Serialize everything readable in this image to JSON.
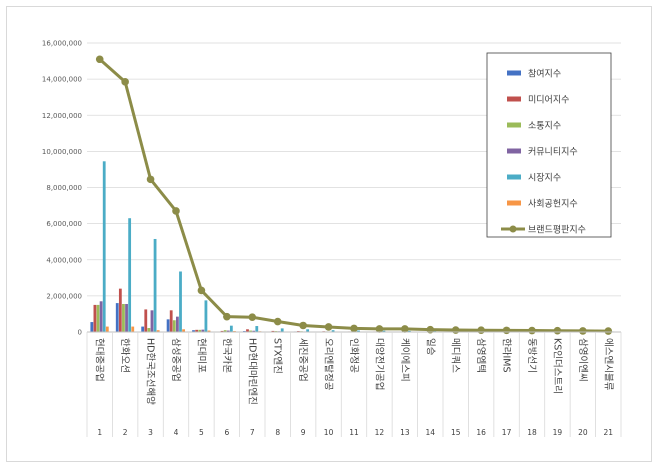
{
  "chart_data": {
    "type": "bar",
    "categories": [
      "현대중공업",
      "한화오션",
      "HD한국조선해양",
      "삼성중공업",
      "현대미포",
      "한국카본",
      "HD현대마린엔진",
      "STX엔진",
      "세진중공업",
      "오리엔탈정공",
      "인화정공",
      "대양전기공업",
      "케이에스피",
      "일승",
      "메디쿼스",
      "삼영엠텍",
      "한라IMS",
      "동방선기",
      "KS인더스트리",
      "삼영이엔씨",
      "에스엔시블류"
    ],
    "ranks": [
      "1",
      "2",
      "3",
      "4",
      "5",
      "6",
      "7",
      "8",
      "9",
      "10",
      "11",
      "12",
      "13",
      "14",
      "15",
      "16",
      "17",
      "18",
      "19",
      "20",
      "21"
    ],
    "ylim": [
      0,
      16000000
    ],
    "yticks": [
      0,
      2000000,
      4000000,
      6000000,
      8000000,
      10000000,
      12000000,
      14000000,
      16000000
    ],
    "ytick_labels": [
      "0",
      "2,000,000",
      "4,000,000",
      "6,000,000",
      "8,000,000",
      "10,000,000",
      "12,000,000",
      "14,000,000",
      "16,000,000"
    ],
    "grid": true,
    "legend_position": "top-right",
    "series": [
      {
        "name": "참여지수",
        "kind": "bar",
        "color": "#4472c4",
        "values": [
          550000,
          1600000,
          300000,
          700000,
          100000,
          20000,
          50000,
          20000,
          30000,
          20000,
          10000,
          10000,
          10000,
          10000,
          5000,
          5000,
          5000,
          5000,
          5000,
          5000,
          5000
        ]
      },
      {
        "name": "미디어지수",
        "kind": "bar",
        "color": "#c0504d",
        "values": [
          1500000,
          2400000,
          1250000,
          1200000,
          120000,
          60000,
          150000,
          60000,
          50000,
          40000,
          30000,
          30000,
          20000,
          20000,
          15000,
          15000,
          15000,
          10000,
          10000,
          10000,
          10000
        ]
      },
      {
        "name": "소통지수",
        "kind": "bar",
        "color": "#9bbb59",
        "values": [
          1500000,
          1550000,
          220000,
          650000,
          120000,
          100000,
          80000,
          50000,
          40000,
          30000,
          20000,
          20000,
          20000,
          15000,
          10000,
          10000,
          10000,
          10000,
          10000,
          10000,
          10000
        ]
      },
      {
        "name": "커뮤니티지수",
        "kind": "bar",
        "color": "#8064a2",
        "values": [
          1700000,
          1550000,
          1200000,
          850000,
          130000,
          80000,
          70000,
          40000,
          30000,
          25000,
          20000,
          20000,
          15000,
          15000,
          10000,
          10000,
          10000,
          10000,
          10000,
          10000,
          10000
        ]
      },
      {
        "name": "시장지수",
        "kind": "bar",
        "color": "#4bacc6",
        "values": [
          9450000,
          6300000,
          5150000,
          3350000,
          1750000,
          350000,
          330000,
          200000,
          150000,
          100000,
          80000,
          70000,
          60000,
          50000,
          40000,
          40000,
          35000,
          35000,
          30000,
          30000,
          30000
        ]
      },
      {
        "name": "사회공헌지수",
        "kind": "bar",
        "color": "#f79646",
        "values": [
          300000,
          300000,
          100000,
          150000,
          80000,
          50000,
          40000,
          20000,
          20000,
          20000,
          10000,
          10000,
          10000,
          10000,
          5000,
          5000,
          5000,
          5000,
          5000,
          5000,
          5000
        ]
      },
      {
        "name": "브랜드평판지수",
        "kind": "line",
        "color": "#8c8c48",
        "values": [
          15100000,
          13850000,
          8450000,
          6700000,
          2300000,
          850000,
          820000,
          580000,
          360000,
          280000,
          200000,
          170000,
          170000,
          130000,
          110000,
          100000,
          90000,
          80000,
          70000,
          60000,
          50000
        ]
      }
    ]
  }
}
